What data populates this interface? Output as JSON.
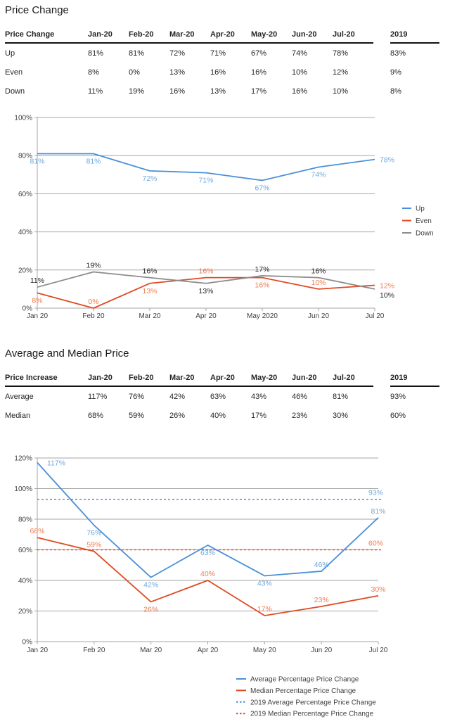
{
  "page": {
    "section1_title": "Price Change",
    "section2_title": "Average and Median Price"
  },
  "colors": {
    "blue_line": "#4a90d9",
    "blue_label": "#6fa8dc",
    "orange_line": "#e04a22",
    "orange_label": "#ed7d53",
    "gray_line": "#8c8c8c",
    "dark_label": "#262626",
    "grid": "#a6a6a6",
    "axis_text": "#404040"
  },
  "tables": [
    {
      "name": "price-change-table",
      "columns": [
        "Price Change",
        "Jan-20",
        "Feb-20",
        "Mar-20",
        "Apr-20",
        "May-20",
        "Jun-20",
        "Jul-20",
        "2019"
      ],
      "rows": [
        {
          "label": "Up",
          "values": [
            "81%",
            "81%",
            "72%",
            "71%",
            "67%",
            "74%",
            "78%",
            "83%"
          ]
        },
        {
          "label": "Even",
          "values": [
            "8%",
            "0%",
            "13%",
            "16%",
            "16%",
            "10%",
            "12%",
            "9%"
          ]
        },
        {
          "label": "Down",
          "values": [
            "11%",
            "19%",
            "16%",
            "13%",
            "17%",
            "16%",
            "10%",
            "8%"
          ]
        }
      ]
    },
    {
      "name": "price-increase-table",
      "columns": [
        "Price Increase",
        "Jan-20",
        "Feb-20",
        "Mar-20",
        "Apr-20",
        "May-20",
        "Jun-20",
        "Jul-20",
        "2019"
      ],
      "rows": [
        {
          "label": "Average",
          "values": [
            "117%",
            "76%",
            "42%",
            "63%",
            "43%",
            "46%",
            "81%",
            "93%"
          ]
        },
        {
          "label": "Median",
          "values": [
            "68%",
            "59%",
            "26%",
            "40%",
            "17%",
            "23%",
            "30%",
            "60%"
          ]
        }
      ]
    }
  ],
  "chart_data": [
    {
      "type": "line",
      "title": "Price Change",
      "categories": [
        "Jan 20",
        "Feb 20",
        "Mar 20",
        "Apr 20",
        "May 2020",
        "Jun 20",
        "Jul 20"
      ],
      "ylim": [
        0,
        100
      ],
      "ytick_step": 20,
      "grid": true,
      "legend_position": "right",
      "series": [
        {
          "name": "Up",
          "style": "solid",
          "color": "#4a90d9",
          "label_color": "#6fa8dc",
          "values": [
            81,
            81,
            72,
            71,
            67,
            74,
            78
          ],
          "label_pos": [
            "below",
            "below",
            "below",
            "below",
            "below",
            "below",
            "right"
          ]
        },
        {
          "name": "Even",
          "style": "solid",
          "color": "#e04a22",
          "label_color": "#ed7d53",
          "values": [
            8,
            0,
            13,
            16,
            16,
            10,
            12
          ],
          "label_pos": [
            "below",
            "above",
            "below",
            "above",
            "below",
            "above",
            "right"
          ]
        },
        {
          "name": "Down",
          "style": "solid",
          "color": "#8c8c8c",
          "label_color": "#262626",
          "values": [
            11,
            19,
            16,
            13,
            17,
            16,
            10
          ],
          "label_pos": [
            "above",
            "above",
            "above",
            "below",
            "above",
            "above",
            "right-below"
          ]
        }
      ]
    },
    {
      "type": "line",
      "title": "Average and Median Price",
      "categories": [
        "Jan 20",
        "Feb 20",
        "Mar 20",
        "Apr 20",
        "May 20",
        "Jun 20",
        "Jul 20"
      ],
      "ylim": [
        0,
        120
      ],
      "ytick_step": 20,
      "grid": true,
      "legend_position": "bottom",
      "series": [
        {
          "name": "Average Percentage Price Change",
          "style": "solid",
          "color": "#4a90d9",
          "label_color": "#6fa8dc",
          "values": [
            117,
            76,
            42,
            63,
            43,
            46,
            81
          ],
          "label_pos": [
            "right-center",
            "below",
            "below",
            "below",
            "below",
            "above",
            "above"
          ]
        },
        {
          "name": "Median Percentage Price Change",
          "style": "solid",
          "color": "#e04a22",
          "label_color": "#ed7d53",
          "values": [
            68,
            59,
            26,
            40,
            17,
            23,
            30
          ],
          "label_pos": [
            "above",
            "above",
            "below",
            "above",
            "above",
            "above",
            "above"
          ]
        },
        {
          "name": "2019 Average Percentage Price Change",
          "style": "dotted",
          "color": "#4a90d9",
          "label_color": "#6fa8dc",
          "ref_value": 93,
          "ref_label": "93%"
        },
        {
          "name": "2019 Median Percentage Price Change",
          "style": "dotted",
          "color": "#e04a22",
          "label_color": "#ed7d53",
          "ref_value": 60,
          "ref_label": "60%"
        }
      ]
    }
  ]
}
